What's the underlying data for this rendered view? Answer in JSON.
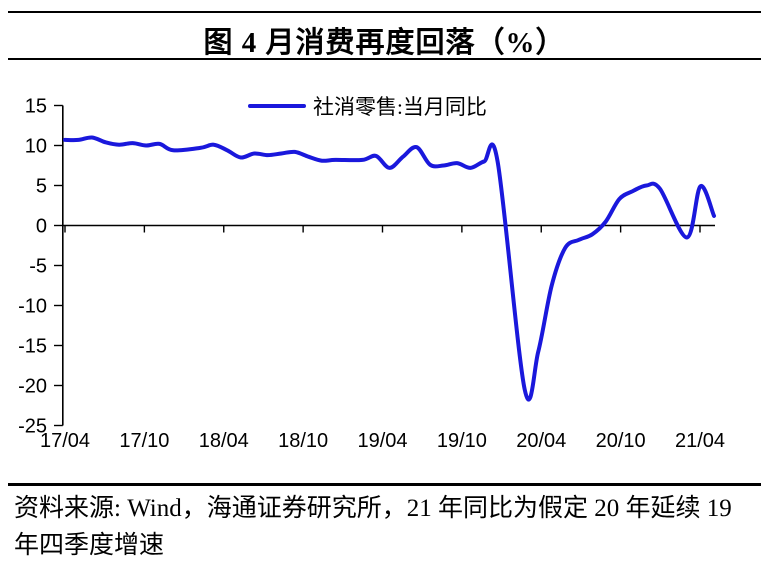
{
  "header": {
    "title": "图 4 月消费再度回落（%）"
  },
  "chart_data": {
    "type": "line",
    "title": "图 4 月消费再度回落（%）",
    "legend_position": "top-center",
    "grid": false,
    "zero_baseline": true,
    "ylim": [
      -25,
      15
    ],
    "y_ticks": [
      15,
      10,
      5,
      0,
      -5,
      -10,
      -15,
      -20,
      -25
    ],
    "x_tick_labels": [
      "17/04",
      "17/10",
      "18/04",
      "18/10",
      "19/04",
      "19/10",
      "20/04",
      "20/10",
      "21/04"
    ],
    "series": [
      {
        "name": "社消零售:当月同比",
        "color": "#1a18dc",
        "points": [
          [
            "17/04",
            10.7
          ],
          [
            "17/05",
            10.7
          ],
          [
            "17/06",
            11.0
          ],
          [
            "17/07",
            10.4
          ],
          [
            "17/08",
            10.1
          ],
          [
            "17/09",
            10.3
          ],
          [
            "17/10",
            10.0
          ],
          [
            "17/11",
            10.2
          ],
          [
            "17/12",
            9.4
          ],
          [
            "18/02",
            9.7
          ],
          [
            "18/03",
            10.1
          ],
          [
            "18/04",
            9.4
          ],
          [
            "18/05",
            8.5
          ],
          [
            "18/06",
            9.0
          ],
          [
            "18/07",
            8.8
          ],
          [
            "18/08",
            9.0
          ],
          [
            "18/09",
            9.2
          ],
          [
            "18/10",
            8.6
          ],
          [
            "18/11",
            8.1
          ],
          [
            "18/12",
            8.2
          ],
          [
            "19/02",
            8.2
          ],
          [
            "19/03",
            8.7
          ],
          [
            "19/04",
            7.2
          ],
          [
            "19/05",
            8.6
          ],
          [
            "19/06",
            9.8
          ],
          [
            "19/07",
            7.6
          ],
          [
            "19/08",
            7.5
          ],
          [
            "19/09",
            7.8
          ],
          [
            "19/10",
            7.2
          ],
          [
            "19/11",
            8.0
          ],
          [
            "19/12",
            8.0
          ],
          [
            "20/02",
            -20.5
          ],
          [
            "20/03",
            -15.8
          ],
          [
            "20/04",
            -7.5
          ],
          [
            "20/05",
            -2.8
          ],
          [
            "20/06",
            -1.8
          ],
          [
            "20/07",
            -1.1
          ],
          [
            "20/08",
            0.5
          ],
          [
            "20/09",
            3.3
          ],
          [
            "20/10",
            4.3
          ],
          [
            "20/11",
            5.0
          ],
          [
            "20/12",
            4.6
          ],
          [
            "21/02",
            -1.5
          ],
          [
            "21/03",
            4.9
          ],
          [
            "21/04",
            1.2
          ]
        ]
      }
    ]
  },
  "footer": {
    "source": "资料来源: Wind，海通证券研究所，21 年同比为假定 20 年延续 19 年四季度增速"
  }
}
